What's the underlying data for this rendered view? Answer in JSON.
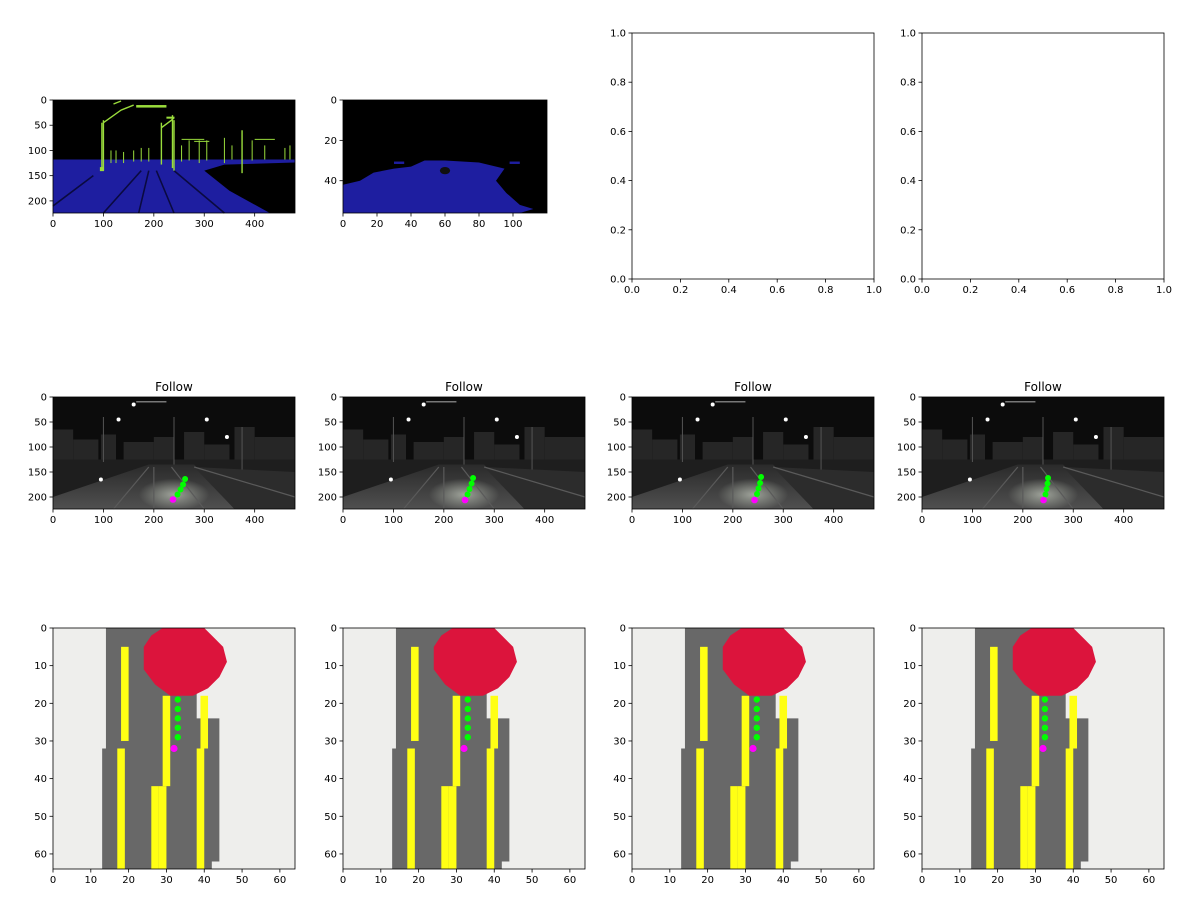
{
  "colors": {
    "black": "#000000",
    "road_blue": "#1e1ea0",
    "pole_green": "#9adc3c",
    "bev_background": "#eeeeec",
    "bev_road": "#686868",
    "bev_lane": "#ffff14",
    "bev_vehicle": "#dc143c",
    "waypoint": "#00ff00",
    "ego": "#ff00ff",
    "night_dark": "#0c0c0c",
    "night_road": "#3a3a3a"
  },
  "chart_data": [
    {
      "id": "segmentation-full",
      "type": "image",
      "xticks": [
        "0",
        "100",
        "200",
        "300",
        "400"
      ],
      "yticks": [
        "0",
        "50",
        "100",
        "150",
        "200"
      ],
      "xlim": [
        0,
        480
      ],
      "ylim": [
        224,
        0
      ]
    },
    {
      "id": "segmentation-crop",
      "type": "image",
      "xticks": [
        "0",
        "20",
        "40",
        "60",
        "80",
        "100"
      ],
      "yticks": [
        "0",
        "20",
        "40"
      ],
      "xlim": [
        0,
        120
      ],
      "ylim": [
        56,
        0
      ]
    },
    {
      "id": "empty-axes-1",
      "type": "empty",
      "xticks": [
        "0.0",
        "0.2",
        "0.4",
        "0.6",
        "0.8",
        "1.0"
      ],
      "yticks": [
        "0.0",
        "0.2",
        "0.4",
        "0.6",
        "0.8",
        "1.0"
      ],
      "xlim": [
        0,
        1
      ],
      "ylim": [
        0,
        1
      ]
    },
    {
      "id": "empty-axes-2",
      "type": "empty",
      "xticks": [
        "0.0",
        "0.2",
        "0.4",
        "0.6",
        "0.8",
        "1.0"
      ],
      "yticks": [
        "0.0",
        "0.2",
        "0.4",
        "0.6",
        "0.8",
        "1.0"
      ],
      "xlim": [
        0,
        1
      ],
      "ylim": [
        0,
        1
      ]
    },
    {
      "id": "camera-1",
      "type": "image",
      "title": "Follow",
      "xticks": [
        "0",
        "100",
        "200",
        "300",
        "400"
      ],
      "yticks": [
        "0",
        "50",
        "100",
        "150",
        "200"
      ],
      "xlim": [
        0,
        480
      ],
      "ylim": [
        224,
        0
      ],
      "waypoints": [
        [
          262,
          164
        ],
        [
          258,
          175
        ],
        [
          253,
          185
        ],
        [
          247,
          195
        ]
      ],
      "ego": [
        238,
        205
      ]
    },
    {
      "id": "camera-2",
      "type": "image",
      "title": "Follow",
      "xticks": [
        "0",
        "100",
        "200",
        "300",
        "400"
      ],
      "yticks": [
        "0",
        "50",
        "100",
        "150",
        "200"
      ],
      "xlim": [
        0,
        480
      ],
      "ylim": [
        224,
        0
      ],
      "waypoints": [
        [
          258,
          162
        ],
        [
          255,
          173
        ],
        [
          251,
          184
        ],
        [
          247,
          195
        ]
      ],
      "ego": [
        242,
        206
      ]
    },
    {
      "id": "camera-3",
      "type": "image",
      "title": "Follow",
      "xticks": [
        "0",
        "100",
        "200",
        "300",
        "400"
      ],
      "yticks": [
        "0",
        "50",
        "100",
        "150",
        "200"
      ],
      "xlim": [
        0,
        480
      ],
      "ylim": [
        224,
        0
      ],
      "waypoints": [
        [
          256,
          160
        ],
        [
          254,
          172
        ],
        [
          251,
          183
        ],
        [
          248,
          194
        ]
      ],
      "ego": [
        243,
        206
      ]
    },
    {
      "id": "camera-4",
      "type": "image",
      "title": "Follow",
      "xticks": [
        "0",
        "100",
        "200",
        "300",
        "400"
      ],
      "yticks": [
        "0",
        "50",
        "100",
        "150",
        "200"
      ],
      "xlim": [
        0,
        480
      ],
      "ylim": [
        224,
        0
      ],
      "waypoints": [
        [
          250,
          162
        ],
        [
          249,
          173
        ],
        [
          247,
          184
        ],
        [
          245,
          195
        ]
      ],
      "ego": [
        241,
        206
      ]
    },
    {
      "id": "bev-1",
      "type": "image",
      "xticks": [
        "0",
        "10",
        "20",
        "30",
        "40",
        "50",
        "60"
      ],
      "yticks": [
        "0",
        "10",
        "20",
        "30",
        "40",
        "50",
        "60"
      ],
      "xlim": [
        0,
        64
      ],
      "ylim": [
        64,
        0
      ],
      "waypoints": [
        [
          33,
          19
        ],
        [
          33,
          21.5
        ],
        [
          33,
          24
        ],
        [
          33,
          26.5
        ],
        [
          33,
          29
        ]
      ],
      "ego": [
        32,
        32
      ]
    },
    {
      "id": "bev-2",
      "type": "image",
      "xticks": [
        "0",
        "10",
        "20",
        "30",
        "40",
        "50",
        "60"
      ],
      "yticks": [
        "0",
        "10",
        "20",
        "30",
        "40",
        "50",
        "60"
      ],
      "xlim": [
        0,
        64
      ],
      "ylim": [
        64,
        0
      ],
      "waypoints": [
        [
          33,
          19
        ],
        [
          33,
          21.5
        ],
        [
          33,
          24
        ],
        [
          33,
          26.5
        ],
        [
          33,
          29
        ]
      ],
      "ego": [
        32,
        32
      ]
    },
    {
      "id": "bev-3",
      "type": "image",
      "xticks": [
        "0",
        "10",
        "20",
        "30",
        "40",
        "50",
        "60"
      ],
      "yticks": [
        "0",
        "10",
        "20",
        "30",
        "40",
        "50",
        "60"
      ],
      "xlim": [
        0,
        64
      ],
      "ylim": [
        64,
        0
      ],
      "waypoints": [
        [
          33,
          19
        ],
        [
          33,
          21.5
        ],
        [
          33,
          24
        ],
        [
          33,
          26.5
        ],
        [
          33,
          29
        ]
      ],
      "ego": [
        32,
        32
      ]
    },
    {
      "id": "bev-4",
      "type": "image",
      "xticks": [
        "0",
        "10",
        "20",
        "30",
        "40",
        "50",
        "60"
      ],
      "yticks": [
        "0",
        "10",
        "20",
        "30",
        "40",
        "50",
        "60"
      ],
      "xlim": [
        0,
        64
      ],
      "ylim": [
        64,
        0
      ],
      "waypoints": [
        [
          32.5,
          19
        ],
        [
          32.5,
          21.5
        ],
        [
          32.5,
          24
        ],
        [
          32.5,
          26.5
        ],
        [
          32.5,
          29
        ]
      ],
      "ego": [
        32,
        32
      ]
    }
  ]
}
